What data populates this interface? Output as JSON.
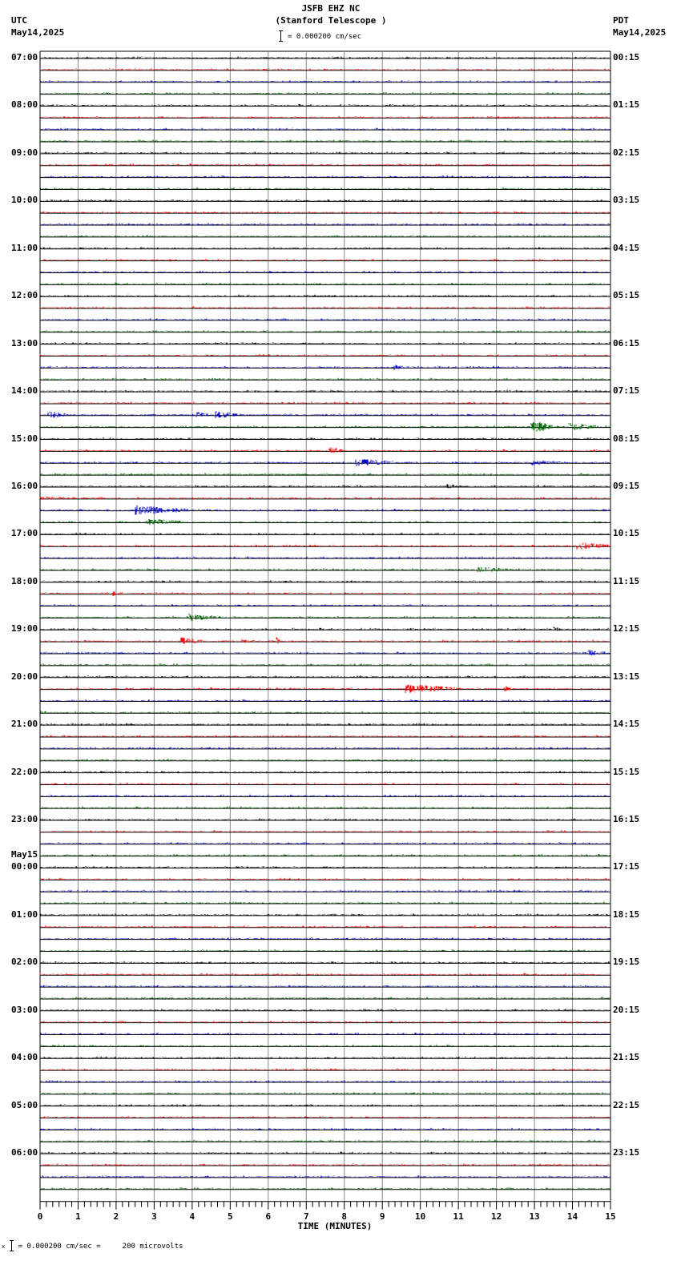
{
  "header": {
    "station": "JSFB EHZ NC",
    "location": "(Stanford Telescope )",
    "left_tz": "UTC",
    "left_date": "May14,2025",
    "right_tz": "PDT",
    "right_date": "May14,2025",
    "scale_text": "= 0.000200 cm/sec"
  },
  "footer": {
    "scale_text": "= 0.000200 cm/sec =     200 microvolts",
    "prefix": "x"
  },
  "chart_data": {
    "type": "line",
    "title": "JSFB EHZ NC (Stanford Telescope )",
    "subtitle": "= 0.000200 cm/sec",
    "xlabel": "TIME (MINUTES)",
    "ylabel": "",
    "xlim": [
      0,
      15
    ],
    "x_ticks": [
      "0",
      "1",
      "2",
      "3",
      "4",
      "5",
      "6",
      "7",
      "8",
      "9",
      "10",
      "11",
      "12",
      "13",
      "14",
      "15"
    ],
    "grid": true,
    "trace_minutes": 15,
    "traces_per_hour": 4,
    "trace_count": 96,
    "trace_colors": [
      "#000000",
      "#ff0000",
      "#0000cc",
      "#006600"
    ],
    "left_labels": [
      {
        "row": 0,
        "text": "07:00"
      },
      {
        "row": 4,
        "text": "08:00"
      },
      {
        "row": 8,
        "text": "09:00"
      },
      {
        "row": 12,
        "text": "10:00"
      },
      {
        "row": 16,
        "text": "11:00"
      },
      {
        "row": 20,
        "text": "12:00"
      },
      {
        "row": 24,
        "text": "13:00"
      },
      {
        "row": 28,
        "text": "14:00"
      },
      {
        "row": 32,
        "text": "15:00"
      },
      {
        "row": 36,
        "text": "16:00"
      },
      {
        "row": 40,
        "text": "17:00"
      },
      {
        "row": 44,
        "text": "18:00"
      },
      {
        "row": 48,
        "text": "19:00"
      },
      {
        "row": 52,
        "text": "20:00"
      },
      {
        "row": 56,
        "text": "21:00"
      },
      {
        "row": 60,
        "text": "22:00"
      },
      {
        "row": 64,
        "text": "23:00"
      },
      {
        "row": 68,
        "text": "00:00",
        "date": "May15"
      },
      {
        "row": 72,
        "text": "01:00"
      },
      {
        "row": 76,
        "text": "02:00"
      },
      {
        "row": 80,
        "text": "03:00"
      },
      {
        "row": 84,
        "text": "04:00"
      },
      {
        "row": 88,
        "text": "05:00"
      },
      {
        "row": 92,
        "text": "06:00"
      }
    ],
    "right_labels": [
      {
        "row": 0,
        "text": "00:15"
      },
      {
        "row": 4,
        "text": "01:15"
      },
      {
        "row": 8,
        "text": "02:15"
      },
      {
        "row": 12,
        "text": "03:15"
      },
      {
        "row": 16,
        "text": "04:15"
      },
      {
        "row": 20,
        "text": "05:15"
      },
      {
        "row": 24,
        "text": "06:15"
      },
      {
        "row": 28,
        "text": "07:15"
      },
      {
        "row": 32,
        "text": "08:15"
      },
      {
        "row": 36,
        "text": "09:15"
      },
      {
        "row": 40,
        "text": "10:15"
      },
      {
        "row": 44,
        "text": "11:15"
      },
      {
        "row": 48,
        "text": "12:15"
      },
      {
        "row": 52,
        "text": "13:15"
      },
      {
        "row": 56,
        "text": "14:15"
      },
      {
        "row": 60,
        "text": "15:15"
      },
      {
        "row": 64,
        "text": "16:15"
      },
      {
        "row": 68,
        "text": "17:15"
      },
      {
        "row": 72,
        "text": "18:15"
      },
      {
        "row": 76,
        "text": "19:15"
      },
      {
        "row": 80,
        "text": "20:15"
      },
      {
        "row": 84,
        "text": "21:15"
      },
      {
        "row": 88,
        "text": "22:15"
      },
      {
        "row": 92,
        "text": "23:15"
      }
    ],
    "events": [
      {
        "row": 26,
        "minute": 9.3,
        "duration": 0.3,
        "amp": 4
      },
      {
        "row": 30,
        "minute": 0.2,
        "duration": 0.5,
        "amp": 5
      },
      {
        "row": 30,
        "minute": 4.1,
        "duration": 0.3,
        "amp": 4
      },
      {
        "row": 30,
        "minute": 4.6,
        "duration": 0.6,
        "amp": 5
      },
      {
        "row": 31,
        "minute": 12.9,
        "duration": 0.6,
        "amp": 8
      },
      {
        "row": 31,
        "minute": 13.9,
        "duration": 0.8,
        "amp": 5
      },
      {
        "row": 33,
        "minute": 7.6,
        "duration": 0.4,
        "amp": 5
      },
      {
        "row": 34,
        "minute": 8.3,
        "duration": 1.1,
        "amp": 5
      },
      {
        "row": 34,
        "minute": 12.9,
        "duration": 0.8,
        "amp": 4
      },
      {
        "row": 36,
        "minute": 10.7,
        "duration": 0.4,
        "amp": 3
      },
      {
        "row": 37,
        "minute": 0.0,
        "duration": 1.5,
        "amp": 2
      },
      {
        "row": 38,
        "minute": 2.5,
        "duration": 1.4,
        "amp": 6
      },
      {
        "row": 39,
        "minute": 2.8,
        "duration": 1.1,
        "amp": 4
      },
      {
        "row": 41,
        "minute": 14.1,
        "duration": 0.9,
        "amp": 5
      },
      {
        "row": 43,
        "minute": 11.5,
        "duration": 0.9,
        "amp": 4
      },
      {
        "row": 45,
        "minute": 1.9,
        "duration": 0.3,
        "amp": 4
      },
      {
        "row": 47,
        "minute": 3.9,
        "duration": 0.9,
        "amp": 5
      },
      {
        "row": 48,
        "minute": 13.5,
        "duration": 0.3,
        "amp": 3
      },
      {
        "row": 49,
        "minute": 3.7,
        "duration": 0.6,
        "amp": 5
      },
      {
        "row": 49,
        "minute": 5.3,
        "duration": 0.4,
        "amp": 3
      },
      {
        "row": 49,
        "minute": 6.2,
        "duration": 0.1,
        "amp": 6
      },
      {
        "row": 50,
        "minute": 14.4,
        "duration": 0.5,
        "amp": 4
      },
      {
        "row": 53,
        "minute": 9.6,
        "duration": 1.3,
        "amp": 6
      },
      {
        "row": 53,
        "minute": 12.2,
        "duration": 0.2,
        "amp": 4
      },
      {
        "row": 55,
        "minute": 0.0,
        "duration": 0.2,
        "amp": 3
      }
    ]
  }
}
